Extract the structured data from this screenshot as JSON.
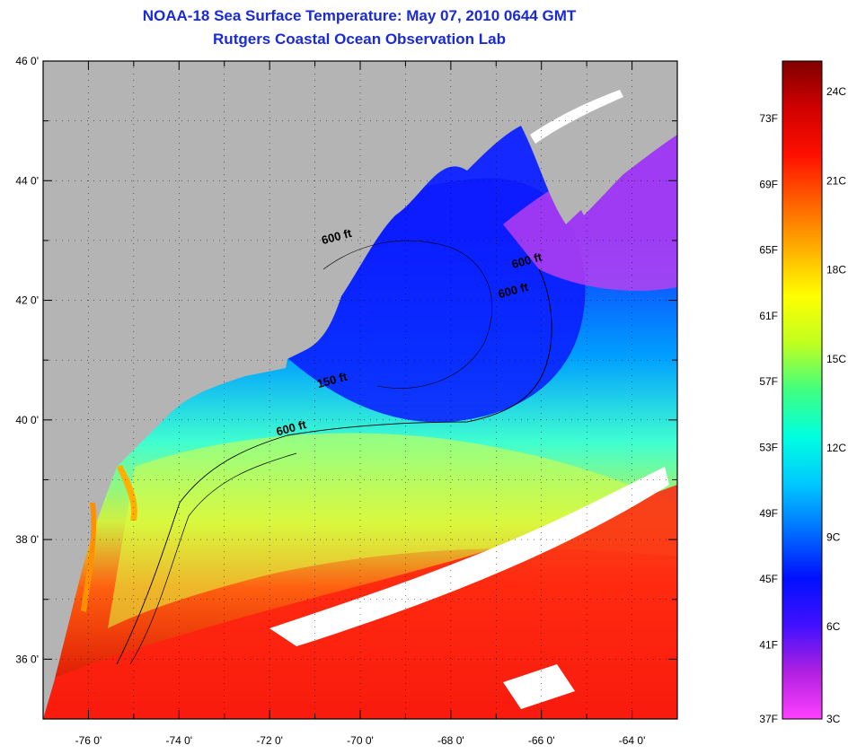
{
  "header": {
    "title": "NOAA-18 Sea Surface Temperature:  May 07, 2010 0644 GMT",
    "subtitle": "Rutgers Coastal Ocean Observation Lab"
  },
  "map": {
    "lat_ticks": [
      {
        "label": "46 0'",
        "value": 46
      },
      {
        "label": "44 0'",
        "value": 44
      },
      {
        "label": "42 0'",
        "value": 42
      },
      {
        "label": "40 0'",
        "value": 40
      },
      {
        "label": "38 0'",
        "value": 38
      },
      {
        "label": "36 0'",
        "value": 36
      }
    ],
    "lon_ticks": [
      {
        "label": "-76 0'",
        "value": -76
      },
      {
        "label": "-74 0'",
        "value": -74
      },
      {
        "label": "-72 0'",
        "value": -72
      },
      {
        "label": "-70 0'",
        "value": -70
      },
      {
        "label": "-68 0'",
        "value": -68
      },
      {
        "label": "-66 0'",
        "value": -66
      },
      {
        "label": "-64 0'",
        "value": -64
      }
    ],
    "lat_range": [
      35,
      46
    ],
    "lon_range": [
      -77,
      -63
    ],
    "contour_labels": [
      {
        "text": "600 ft",
        "lon": -70.5,
        "lat": 43.0
      },
      {
        "text": "600 ft",
        "lon": -66.3,
        "lat": 42.6
      },
      {
        "text": "600 ft",
        "lon": -66.6,
        "lat": 42.1
      },
      {
        "text": "150 ft",
        "lon": -70.6,
        "lat": 40.6
      },
      {
        "text": "600 ft",
        "lon": -71.5,
        "lat": 39.8
      }
    ],
    "colors": {
      "land": "#b4b4b4",
      "cloud": "#ffffff",
      "frame": "#000000",
      "grid": "#000000"
    }
  },
  "colorbar": {
    "fahrenheit_labels": [
      "73F",
      "69F",
      "65F",
      "61F",
      "57F",
      "53F",
      "49F",
      "45F",
      "41F",
      "37F"
    ],
    "celsius_labels": [
      "24C",
      "21C",
      "18C",
      "15C",
      "12C",
      "9C",
      "6C",
      "3C"
    ],
    "gradient": [
      "#ff40ff",
      "#b020e0",
      "#4010ff",
      "#0010ff",
      "#0070ff",
      "#00c8ff",
      "#00ffe0",
      "#40ff80",
      "#c0ff20",
      "#ffff00",
      "#ffb000",
      "#ff6000",
      "#ff1000",
      "#d00000",
      "#800000"
    ]
  }
}
